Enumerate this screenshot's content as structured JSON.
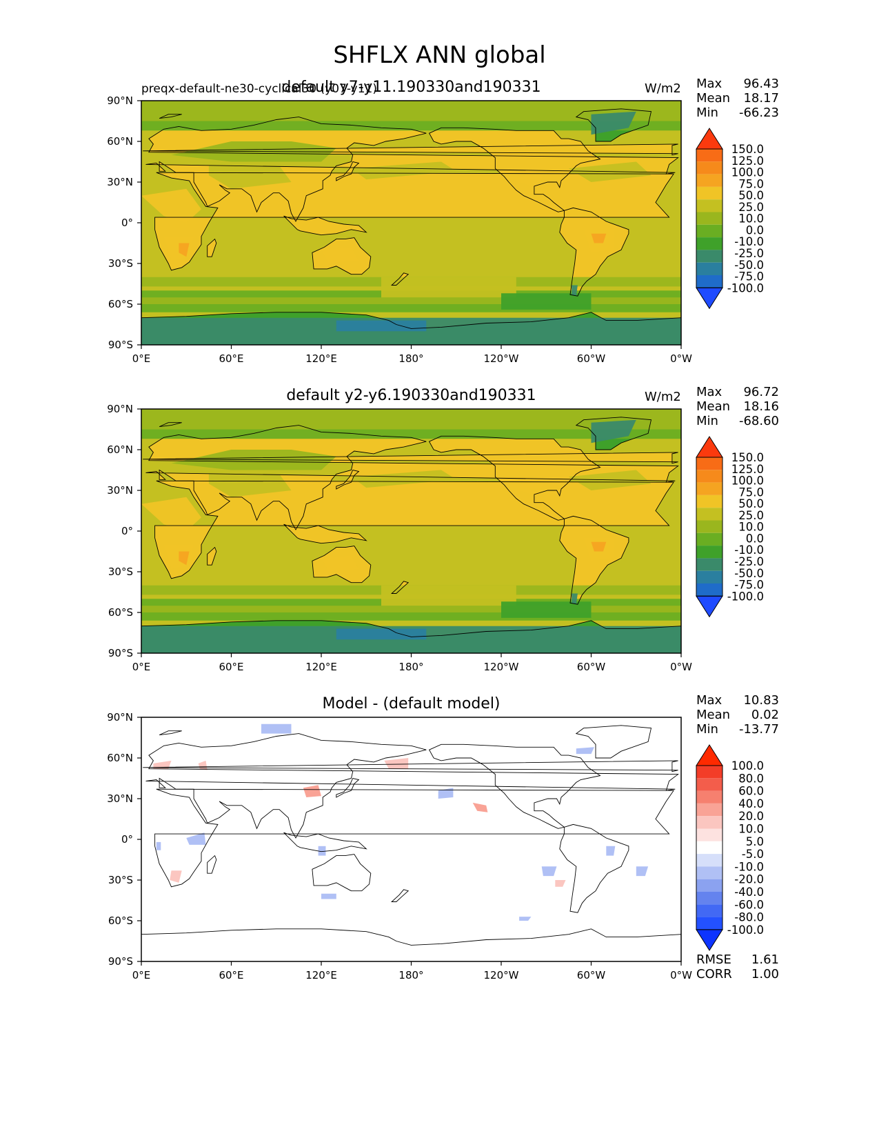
{
  "figure": {
    "title": "SHFLX ANN global"
  },
  "colors": {
    "land_outline": "#000000",
    "sequential_levels": [
      "#1f4bff",
      "#1f6cc9",
      "#2a7f9f",
      "#3a8a6a",
      "#3fa12a",
      "#6aae22",
      "#9ab61e",
      "#c4c021",
      "#f0c426",
      "#f5a421",
      "#f68a1b",
      "#f86c16",
      "#fb3a0e"
    ],
    "diverging_levels": [
      "#0d34ff",
      "#2351ff",
      "#4269f4",
      "#6483ee",
      "#8ba2f0",
      "#b0c0f5",
      "#d6dffa",
      "#ffffff",
      "#fde2e0",
      "#fbc6c0",
      "#f9a396",
      "#f6806f",
      "#f35d4b",
      "#f33d28",
      "#ff2a00"
    ]
  },
  "axes": {
    "lat_ticks": [
      "90°N",
      "60°N",
      "30°N",
      "0°",
      "30°S",
      "60°S",
      "90°S"
    ],
    "lon_ticks": [
      "0°E",
      "60°E",
      "120°E",
      "180°",
      "120°W",
      "60°W",
      "0°W"
    ]
  },
  "panels": [
    {
      "title": "default y7-y11.190330and190331",
      "left_label": "preqx-default-ne30-cyclical30 (y07-y11)",
      "units": "W/m2",
      "stats": {
        "max_label": "Max",
        "max": "96.43",
        "mean_label": "Mean",
        "mean": "18.17",
        "min_label": "Min",
        "min": "-66.23"
      },
      "colorbar": {
        "palette": "sequential",
        "labels": [
          "150.0",
          "125.0",
          "100.0",
          "75.0",
          "50.0",
          "25.0",
          "10.0",
          "0.0",
          "-10.0",
          "-25.0",
          "-50.0",
          "-75.0",
          "-100.0"
        ]
      }
    },
    {
      "title": "default y2-y6.190330and190331",
      "left_label": "",
      "units": "W/m2",
      "stats": {
        "max_label": "Max",
        "max": "96.72",
        "mean_label": "Mean",
        "mean": "18.16",
        "min_label": "Min",
        "min": "-68.60"
      },
      "colorbar": {
        "palette": "sequential",
        "labels": [
          "150.0",
          "125.0",
          "100.0",
          "75.0",
          "50.0",
          "25.0",
          "10.0",
          "0.0",
          "-10.0",
          "-25.0",
          "-50.0",
          "-75.0",
          "-100.0"
        ]
      }
    },
    {
      "title": "Model - (default model)",
      "left_label": "",
      "units": "",
      "stats": {
        "max_label": "Max",
        "max": "10.83",
        "mean_label": "Mean",
        "mean": "0.02",
        "min_label": "Min",
        "min": "-13.77"
      },
      "colorbar": {
        "palette": "diverging",
        "labels": [
          "100.0",
          "80.0",
          "60.0",
          "40.0",
          "20.0",
          "10.0",
          "5.0",
          "-5.0",
          "-10.0",
          "-20.0",
          "-40.0",
          "-60.0",
          "-80.0",
          "-100.0"
        ]
      },
      "metrics": {
        "rmse_label": "RMSE",
        "rmse": "1.61",
        "corr_label": "CORR",
        "corr": "1.00"
      }
    }
  ],
  "chart_data": [
    {
      "type": "heatmap",
      "title": "default y7-y11.190330and190331",
      "units": "W/m2",
      "xlim": [
        0,
        360
      ],
      "ylim": [
        -90,
        90
      ],
      "max": 96.43,
      "mean": 18.17,
      "min": -66.23,
      "levels": [
        -100,
        -75,
        -50,
        -25,
        -10,
        0,
        10,
        25,
        50,
        75,
        100,
        125,
        150
      ]
    },
    {
      "type": "heatmap",
      "title": "default y2-y6.190330and190331",
      "units": "W/m2",
      "xlim": [
        0,
        360
      ],
      "ylim": [
        -90,
        90
      ],
      "max": 96.72,
      "mean": 18.16,
      "min": -68.6,
      "levels": [
        -100,
        -75,
        -50,
        -25,
        -10,
        0,
        10,
        25,
        50,
        75,
        100,
        125,
        150
      ]
    },
    {
      "type": "heatmap",
      "title": "Model - (default model)",
      "xlim": [
        0,
        360
      ],
      "ylim": [
        -90,
        90
      ],
      "max": 10.83,
      "mean": 0.02,
      "min": -13.77,
      "rmse": 1.61,
      "corr": 1.0,
      "levels": [
        -100,
        -80,
        -60,
        -40,
        -20,
        -10,
        -5,
        5,
        10,
        20,
        40,
        60,
        80,
        100
      ]
    }
  ]
}
